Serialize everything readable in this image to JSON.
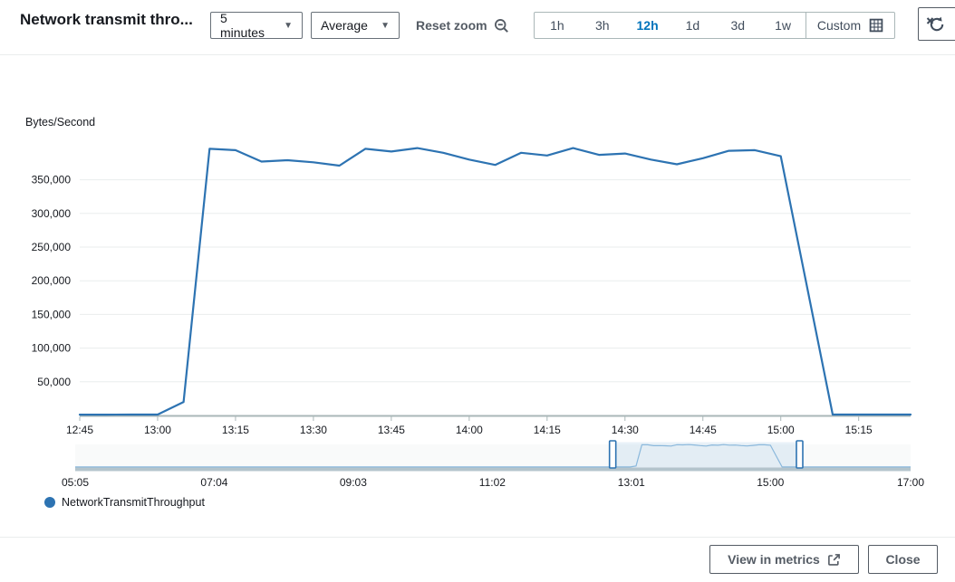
{
  "header": {
    "title": "Network transmit thro...",
    "period_dropdown": {
      "value": "5 minutes"
    },
    "stat_dropdown": {
      "value": "Average"
    },
    "reset_zoom_label": "Reset zoom",
    "ranges": [
      {
        "label": "1h",
        "selected": false
      },
      {
        "label": "3h",
        "selected": false
      },
      {
        "label": "12h",
        "selected": true
      },
      {
        "label": "1d",
        "selected": false
      },
      {
        "label": "3d",
        "selected": false
      },
      {
        "label": "1w",
        "selected": false
      }
    ],
    "custom_label": "Custom"
  },
  "icons": {
    "dropdown_caret": "caret-down",
    "reset_zoom": "magnifier-zoom-out",
    "custom_range": "calendar-grid",
    "refresh": "refresh-disabled",
    "view_in_metrics": "external-link",
    "legend_marker": "circle"
  },
  "colors": {
    "accent_blue": "#0073bb",
    "series_blue": "#2d73b2",
    "text_dark": "#16191f",
    "muted_gray": "#545b64",
    "gridline": "#eaeded",
    "axis_line": "#aab7b8",
    "timeline_bar": "#b4c4cc",
    "timeline_line": "#8ab8dc"
  },
  "chart_data": {
    "type": "line",
    "title": "",
    "xlabel": "",
    "ylabel": "Bytes/Second",
    "grid": true,
    "legend_position": "bottom-left",
    "ylim": [
      0,
      410000
    ],
    "y_ticks": [
      50000,
      100000,
      150000,
      200000,
      250000,
      300000,
      350000
    ],
    "x_ticks": [
      "12:45",
      "13:00",
      "13:15",
      "13:30",
      "13:45",
      "14:00",
      "14:15",
      "14:30",
      "14:45",
      "15:00",
      "15:15"
    ],
    "series": [
      {
        "name": "NetworkTransmitThroughput",
        "color": "#2d73b2",
        "x": [
          "12:45",
          "12:50",
          "12:55",
          "13:00",
          "13:05",
          "13:10",
          "13:15",
          "13:20",
          "13:25",
          "13:30",
          "13:35",
          "13:40",
          "13:45",
          "13:50",
          "13:55",
          "14:00",
          "14:05",
          "14:10",
          "14:15",
          "14:20",
          "14:25",
          "14:30",
          "14:35",
          "14:40",
          "14:45",
          "14:50",
          "14:55",
          "15:00",
          "15:05",
          "15:10",
          "15:15",
          "15:20",
          "15:25"
        ],
        "values": [
          1200,
          1200,
          1300,
          1400,
          20000,
          396000,
          394000,
          377000,
          379000,
          376000,
          371000,
          396000,
          392000,
          397000,
          390000,
          380000,
          372000,
          390000,
          386000,
          397000,
          387000,
          389000,
          380000,
          373000,
          382000,
          393000,
          394000,
          385000,
          193000,
          1400,
          1300,
          1300,
          1300
        ]
      }
    ],
    "timeline": {
      "x_ticks": [
        "05:05",
        "07:04",
        "09:03",
        "11:02",
        "13:01",
        "15:00",
        "17:00"
      ],
      "range": [
        "05:05",
        "17:00"
      ],
      "selection": [
        "12:45",
        "15:25"
      ]
    }
  },
  "footer": {
    "view_in_metrics_label": "View in metrics",
    "close_label": "Close"
  }
}
